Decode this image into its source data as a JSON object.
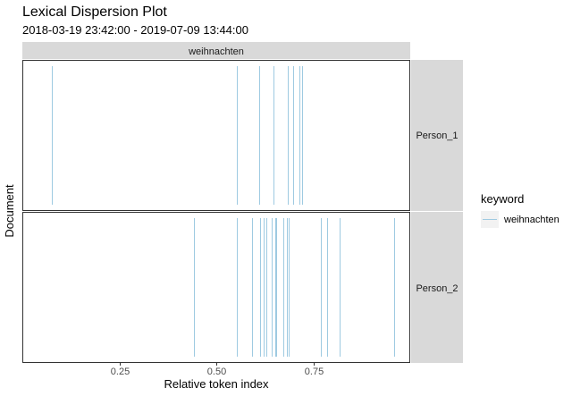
{
  "chart_data": {
    "type": "dispersion",
    "title": "Lexical Dispersion Plot",
    "subtitle": "2018-03-19 23:42:00  -  2019-07-09 13:44:00",
    "xlabel": "Relative token index",
    "ylabel": "Document",
    "xlim": [
      0,
      1
    ],
    "xticks": [
      0.25,
      0.5,
      0.75
    ],
    "xtick_labels": [
      "0.25",
      "0.50",
      "0.75"
    ],
    "grid": false,
    "column_facet": "weihnachten",
    "row_facets": [
      {
        "name": "Person_1",
        "x": [
          0.075,
          0.553,
          0.61,
          0.648,
          0.685,
          0.698,
          0.714,
          0.721
        ]
      },
      {
        "name": "Person_2",
        "x": [
          0.443,
          0.552,
          0.592,
          0.614,
          0.621,
          0.628,
          0.644,
          0.651,
          0.655,
          0.672,
          0.682,
          0.686,
          0.769,
          0.786,
          0.817,
          0.958
        ]
      }
    ],
    "legend": {
      "title": "keyword",
      "position": "right",
      "entries": [
        {
          "label": "weihnachten",
          "color": "#9ecae1"
        }
      ]
    },
    "colors": {
      "line": "#9ecae1",
      "strip_bg": "#d9d9d9",
      "panel_border": "#333333"
    }
  }
}
